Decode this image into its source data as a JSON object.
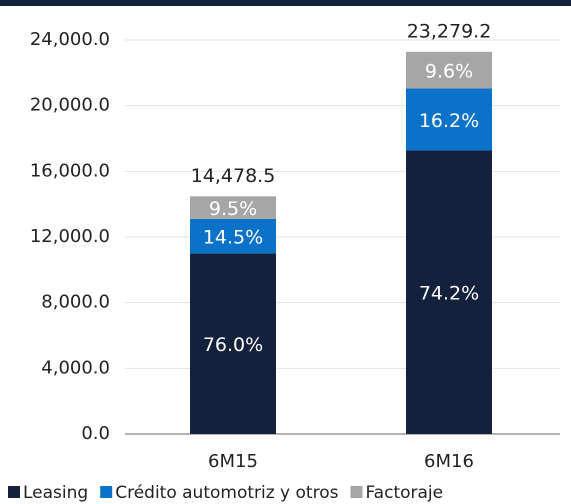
{
  "chart_data": {
    "type": "stacked_bar",
    "categories": [
      "6M15",
      "6M16"
    ],
    "series": [
      {
        "name": "Leasing",
        "color": "#14213d",
        "values": [
          11003.7,
          17273.2
        ],
        "value_labels": [
          "76.0%",
          "74.2%"
        ]
      },
      {
        "name": "Crédito automotriz y otros",
        "color": "#0a73c9",
        "values": [
          2099.4,
          3771.2
        ],
        "value_labels": [
          "14.5%",
          "16.2%"
        ]
      },
      {
        "name": "Factoraje",
        "color": "#a6a6a6",
        "values": [
          1375.4,
          2234.8
        ],
        "value_labels": [
          "9.5%",
          "9.6%"
        ]
      }
    ],
    "totals": [
      14478.5,
      23279.2
    ],
    "total_labels": [
      "14,478.5",
      "23,279.2"
    ],
    "ylim": [
      0,
      24000
    ],
    "yticks": [
      {
        "value": 0,
        "label": "0.0"
      },
      {
        "value": 4000,
        "label": "4,000.0"
      },
      {
        "value": 8000,
        "label": "8,000.0"
      },
      {
        "value": 12000,
        "label": "12,000.0"
      },
      {
        "value": 16000,
        "label": "16,000.0"
      },
      {
        "value": 20000,
        "label": "20,000.0"
      },
      {
        "value": 24000,
        "label": "24,000.0"
      }
    ],
    "grid": true,
    "legend": "bottom"
  }
}
